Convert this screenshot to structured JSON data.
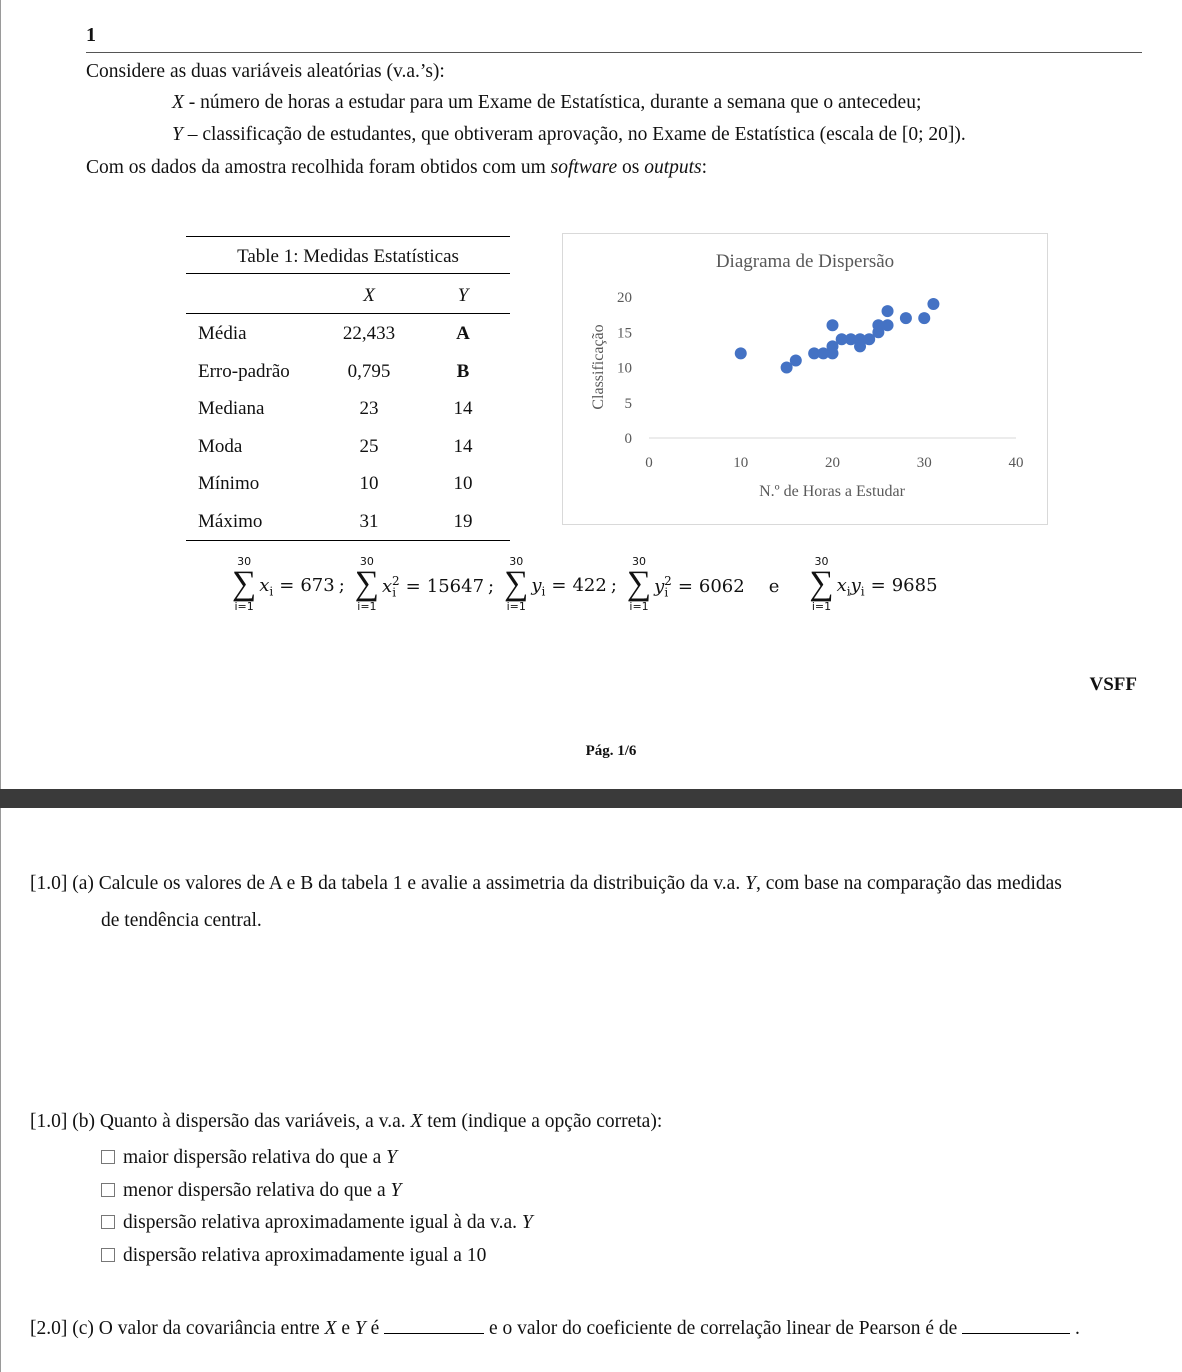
{
  "header": {
    "number": "1"
  },
  "intro": "Considere as duas variáveis aleatórias (v.a.’s):",
  "variables": [
    {
      "symbol": "X",
      "description": " - número de horas a estudar para um Exame de Estatística, durante a semana que o antecedeu;"
    },
    {
      "symbol": "Y",
      "description": " – classificação de estudantes, que obtiveram aprovação, no Exame de Estatística (escala de [0; 20])."
    }
  ],
  "context": [
    "Com os dados da amostra recolhida foram obtidos com um ",
    "software",
    " os ",
    "outputs",
    ":"
  ],
  "table": {
    "caption": "Table 1: Medidas Estatísticas",
    "header": [
      "X",
      "Y"
    ],
    "rows": [
      [
        "Média",
        "22,433",
        "A"
      ],
      [
        "Erro-padrão",
        "0,795",
        "B"
      ],
      [
        "Mediana",
        "23",
        "14"
      ],
      [
        "Moda",
        "25",
        "14"
      ],
      [
        "Mínimo",
        "10",
        "10"
      ],
      [
        "Máximo",
        "31",
        "19"
      ]
    ]
  },
  "chart_data": {
    "type": "scatter",
    "title": "Diagrama de Dispersão",
    "x_label": "N.º de Horas a Estudar",
    "y_label": "Classificação",
    "color": "#4472c4",
    "x": [
      10,
      15,
      16,
      18,
      19,
      20,
      20,
      20,
      21,
      22,
      23,
      23,
      24,
      25,
      25,
      26,
      26,
      28,
      30,
      31
    ],
    "values": [
      12,
      10,
      11,
      12,
      12,
      12,
      13,
      16,
      14,
      14,
      14,
      13,
      14,
      15,
      16,
      16,
      18,
      17,
      17,
      19
    ],
    "xlim": [
      0,
      40
    ],
    "xticks": [
      0,
      10,
      20,
      30,
      40
    ],
    "ylim": [
      0,
      20
    ],
    "yticks": [
      0,
      5,
      10,
      15,
      20
    ],
    "grid": false
  },
  "sums": [
    {
      "upper": "30",
      "sigma": "∑",
      "lower": "i=1",
      "terms": [
        {
          "var": "x",
          "sub": "i"
        }
      ],
      "rel": "=",
      "value": 673,
      "sep": ";"
    },
    {
      "upper": "30",
      "sigma": "∑",
      "lower": "i=1",
      "terms": [
        {
          "var": "x",
          "sub": "i",
          "sup": "2"
        }
      ],
      "rel": "=",
      "value": 15647,
      "sep": ";"
    },
    {
      "upper": "30",
      "sigma": "∑",
      "lower": "i=1",
      "terms": [
        {
          "var": "y",
          "sub": "i"
        }
      ],
      "rel": "=",
      "value": 422,
      "sep": ";"
    },
    {
      "upper": "30",
      "sigma": "∑",
      "lower": "i=1",
      "terms": [
        {
          "var": "y",
          "sub": "i",
          "sup": "2"
        }
      ],
      "rel": "=",
      "value": 6062,
      "sep": "e"
    },
    {
      "upper": "30",
      "sigma": "∑",
      "lower": "i=1",
      "terms": [
        {
          "var": "x",
          "sub": "i"
        },
        {
          "var": "y",
          "sub": "i"
        }
      ],
      "rel": "=",
      "value": 9685
    }
  ],
  "footer": {
    "note": "VSFF",
    "page": "Pág. 1/6"
  },
  "questions": {
    "a": [
      "[1.0] (a) Calcule os valores de A e B da tabela 1 e avalie a assimetria da distribuição da v.a. ",
      "Y",
      ", com base na comparação das medidas",
      "de tendência central."
    ],
    "b": {
      "text": [
        "[1.0] (b) Quanto à dispersão das variáveis, a v.a. ",
        "X",
        " tem (indique a opção correta):"
      ],
      "options": [
        [
          "maior dispersão relativa do que a ",
          "Y"
        ],
        [
          "menor dispersão relativa do que a ",
          "Y"
        ],
        [
          "dispersão relativa aproximadamente igual à da v.a. ",
          "Y"
        ],
        [
          "dispersão relativa aproximadamente igual a 10"
        ]
      ]
    },
    "c": [
      "[2.0] (c) O valor da covariância entre ",
      "X",
      " e ",
      "Y",
      " é ",
      " e o valor do coeficiente de correlação linear de Pearson é de ",
      " ."
    ]
  }
}
